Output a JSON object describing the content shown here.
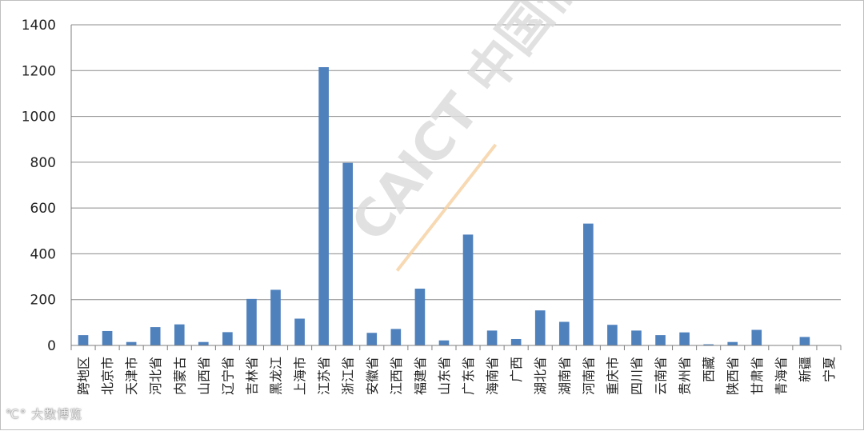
{
  "chart_data": {
    "type": "bar",
    "categories": [
      "跨地区",
      "北京市",
      "天津市",
      "河北省",
      "内蒙古",
      "山西省",
      "辽宁省",
      "吉林省",
      "黑龙江",
      "上海市",
      "江苏省",
      "浙江省",
      "安徽省",
      "江西省",
      "福建省",
      "山东省",
      "广东省",
      "海南省",
      "广西",
      "湖北省",
      "湖南省",
      "河南省",
      "重庆市",
      "四川省",
      "云南省",
      "贵州省",
      "西藏",
      "陕西省",
      "甘肃省",
      "青海省",
      "新疆",
      "宁夏"
    ],
    "values": [
      45,
      63,
      15,
      80,
      92,
      15,
      58,
      203,
      243,
      117,
      1215,
      797,
      55,
      72,
      248,
      22,
      484,
      65,
      28,
      153,
      103,
      532,
      90,
      65,
      45,
      57,
      5,
      15,
      68,
      0,
      37,
      0
    ],
    "title": "",
    "xlabel": "",
    "ylabel": "",
    "ylim": [
      0,
      1400
    ],
    "yticks": [
      0,
      200,
      400,
      600,
      800,
      1000,
      1200,
      1400
    ],
    "grid": true,
    "legend": "none",
    "bar_color": "#4f81bd"
  },
  "watermarks": {
    "diagonal_text": "CAICT 中国信通院",
    "corner_text": "大数博览"
  },
  "colors": {
    "grid": "#8c8c8c",
    "axis": "#7f7f7f",
    "watermark": "#dcdcdc",
    "watermark_accent": "#f5d0a0"
  }
}
